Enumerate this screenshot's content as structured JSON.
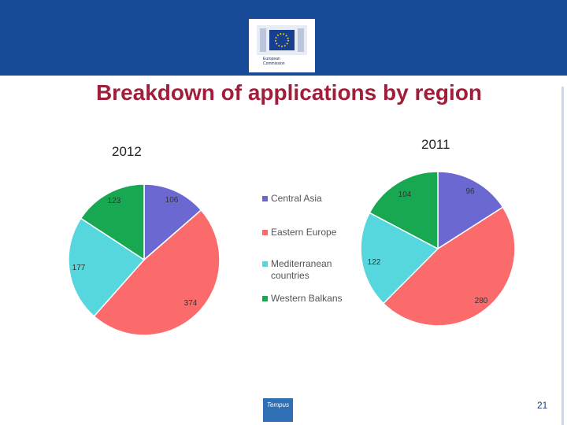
{
  "header": {
    "logo_text": "European Commission"
  },
  "title": "Breakdown of applications by region",
  "colors": {
    "banner": "#174a97",
    "title": "#a01e3a"
  },
  "legend": [
    {
      "label": "Central Asia",
      "color": "#6b68d1"
    },
    {
      "label": "Eastern Europe",
      "color": "#fb6b6b"
    },
    {
      "label": "Mediterranean countries",
      "color": "#56d6dd"
    },
    {
      "label": "Western Balkans",
      "color": "#17a851"
    }
  ],
  "chart_data": [
    {
      "type": "pie",
      "title": "2012",
      "categories": [
        "Central Asia",
        "Eastern Europe",
        "Mediterranean countries",
        "Western Balkans"
      ],
      "values": [
        106,
        374,
        177,
        123
      ]
    },
    {
      "type": "pie",
      "title": "2011",
      "categories": [
        "Central Asia",
        "Eastern Europe",
        "Mediterranean countries",
        "Western Balkans"
      ],
      "values": [
        96,
        280,
        122,
        104
      ]
    }
  ],
  "footer": {
    "logo_text": "Tempus",
    "page_number": "21"
  }
}
